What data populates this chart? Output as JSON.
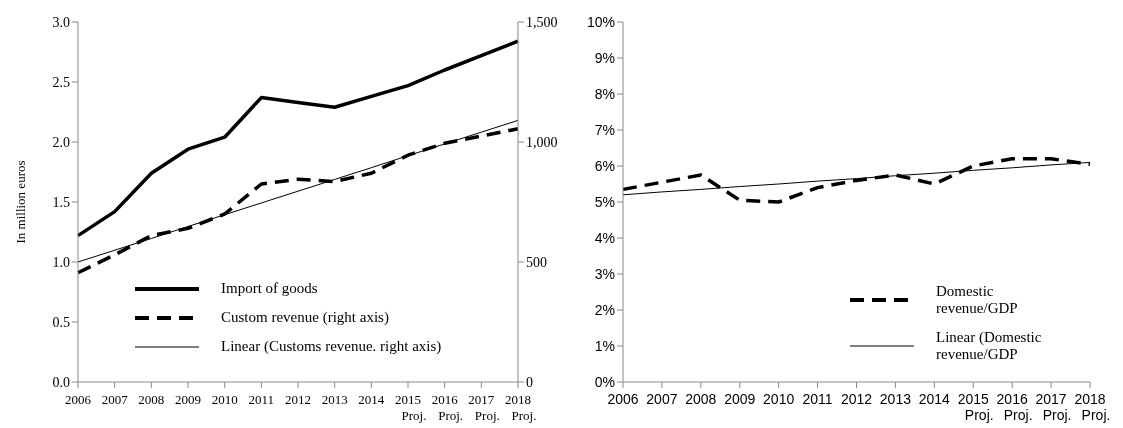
{
  "chart_data": [
    {
      "type": "line",
      "ylabel": "In million euros",
      "categories": [
        "2006",
        "2007",
        "2008",
        "2009",
        "2010",
        "2011",
        "2012",
        "2013",
        "2014",
        "2015\nProj.",
        "2016\nProj.",
        "2017\nProj.",
        "2018\nProj."
      ],
      "ylim": [
        0,
        3
      ],
      "yticks": [
        {
          "value": 0,
          "label": "0.0"
        },
        0.5,
        {
          "value": 1,
          "label": "1.0"
        },
        1.5,
        {
          "value": 2,
          "label": "2.0"
        },
        2.5,
        {
          "value": 3,
          "label": "3.0"
        }
      ],
      "y2lim": [
        0,
        1500
      ],
      "y2ticks": [
        0,
        500,
        {
          "value": 1000,
          "label": "1,000"
        },
        {
          "value": 1500,
          "label": "1,500"
        }
      ],
      "legend": "bottom",
      "series": [
        {
          "name": "Import of goods",
          "color": "#000000",
          "line_style": "solid",
          "values": [
            1.22,
            1.42,
            1.74,
            1.94,
            2.04,
            2.37,
            2.33,
            2.29,
            2.38,
            2.47,
            2.6,
            2.72,
            2.84
          ]
        },
        {
          "name": "Custom revenue (right axis)",
          "color": "#000000",
          "line_style": "dashed",
          "axis": "y2",
          "values": [
            455,
            530,
            610,
            640,
            700,
            825,
            845,
            835,
            870,
            945,
            995,
            1025,
            1055
          ]
        },
        {
          "name": "Linear (Customs revenue. right axis)",
          "color": "#000000",
          "type": "line",
          "line_style": "solid",
          "axis": "y2",
          "values": [
            500,
            549,
            598,
            648,
            697,
            746,
            795,
            844,
            893,
            943,
            992,
            1041,
            1090
          ]
        }
      ]
    },
    {
      "type": "line",
      "categories": [
        "2006",
        "2007",
        "2008",
        "2009",
        "2010",
        "2011",
        "2012",
        "2013",
        "2014",
        "2015\nProj.",
        "2016\nProj.",
        "2017\nProj.",
        "2018\nProj."
      ],
      "ylim": [
        0,
        10
      ],
      "yticks": [
        {
          "value": 0,
          "label": "0%"
        },
        {
          "value": 1,
          "label": "1%"
        },
        {
          "value": 2,
          "label": "2%"
        },
        {
          "value": 3,
          "label": "3%"
        },
        {
          "value": 4,
          "label": "4%"
        },
        {
          "value": 5,
          "label": "5%"
        },
        {
          "value": 6,
          "label": "6%"
        },
        {
          "value": 7,
          "label": "7%"
        },
        {
          "value": 8,
          "label": "8%"
        },
        {
          "value": 9,
          "label": "9%"
        },
        {
          "value": 10,
          "label": "10%"
        }
      ],
      "legend": "bottom",
      "series": [
        {
          "name": "Domestic revenue/GDP",
          "color": "#000000",
          "line_style": "dashed",
          "values": [
            5.35,
            5.55,
            5.75,
            5.05,
            5.0,
            5.4,
            5.6,
            5.75,
            5.5,
            6.0,
            6.2,
            6.2,
            6.05
          ]
        },
        {
          "name": "Linear (Domestic revenue/GDP",
          "color": "#000000",
          "type": "line",
          "line_style": "solid",
          "values": [
            5.2,
            5.28,
            5.35,
            5.43,
            5.5,
            5.58,
            5.65,
            5.73,
            5.8,
            5.88,
            5.95,
            6.03,
            6.1
          ]
        }
      ]
    }
  ]
}
